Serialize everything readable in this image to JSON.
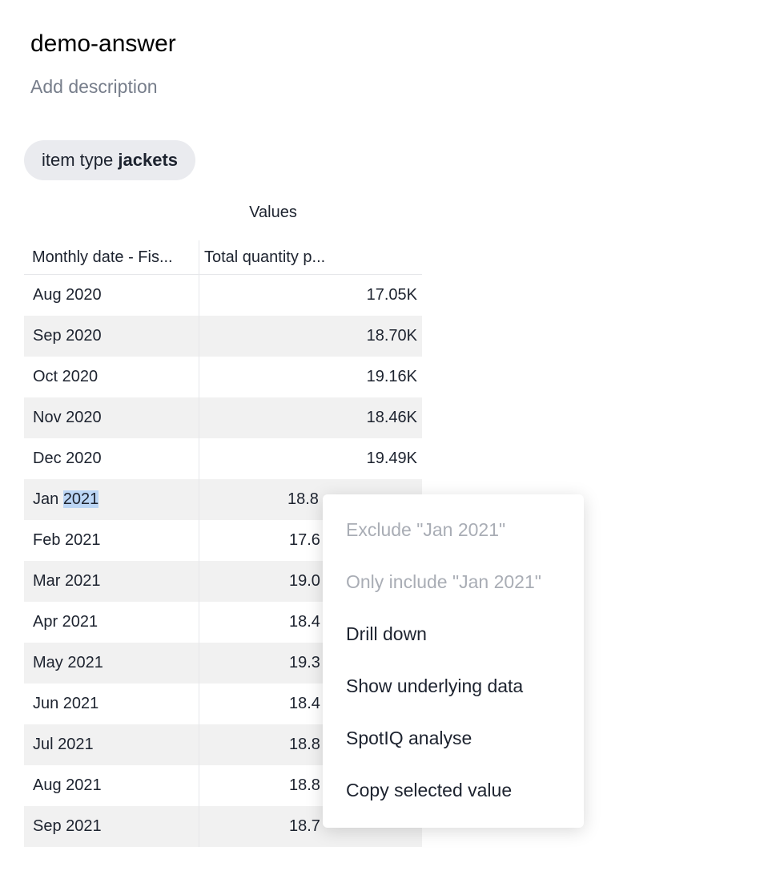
{
  "title": "demo-answer",
  "description_placeholder": "Add description",
  "filter_chip": {
    "label": "item type",
    "value": "jackets"
  },
  "table": {
    "group_header": "Values",
    "columns": [
      "Monthly date - Fis...",
      "Total quantity p..."
    ],
    "rows": [
      {
        "date": "Aug 2020",
        "value": "17.05K"
      },
      {
        "date": "Sep 2020",
        "value": "18.70K"
      },
      {
        "date": "Oct 2020",
        "value": "19.16K"
      },
      {
        "date": "Nov 2020",
        "value": "18.46K"
      },
      {
        "date": "Dec 2020",
        "value": "19.49K"
      },
      {
        "date_prefix": "Jan ",
        "date_selected": "2021",
        "value": "18.8"
      },
      {
        "date": "Feb 2021",
        "value": "17.6"
      },
      {
        "date": "Mar 2021",
        "value": "19.0"
      },
      {
        "date": "Apr 2021",
        "value": "18.4"
      },
      {
        "date": "May 2021",
        "value": "19.3"
      },
      {
        "date": "Jun 2021",
        "value": "18.4"
      },
      {
        "date": "Jul 2021",
        "value": "18.8"
      },
      {
        "date": "Aug 2021",
        "value": "18.8"
      },
      {
        "date": "Sep 2021",
        "value": "18.7"
      }
    ]
  },
  "context_menu": {
    "items": [
      {
        "label": "Exclude \"Jan 2021\"",
        "disabled": true
      },
      {
        "label": "Only include \"Jan 2021\"",
        "disabled": true
      },
      {
        "label": "Drill down",
        "disabled": false
      },
      {
        "label": "Show underlying data",
        "disabled": false
      },
      {
        "label": "SpotIQ analyse",
        "disabled": false
      },
      {
        "label": "Copy selected value",
        "disabled": false
      }
    ]
  }
}
